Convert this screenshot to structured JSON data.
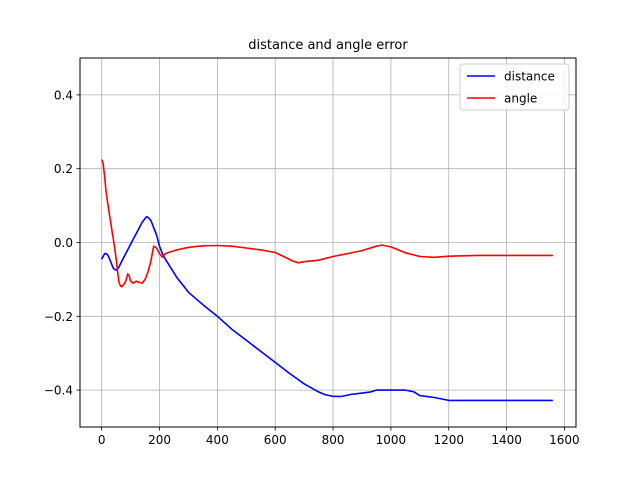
{
  "chart_data": {
    "type": "line",
    "title": "distance and angle error",
    "xlabel": "",
    "ylabel": "",
    "xlim": [
      -75,
      1640
    ],
    "ylim": [
      -0.5,
      0.5
    ],
    "xticks": [
      0,
      200,
      400,
      600,
      800,
      1000,
      1200,
      1400,
      1600
    ],
    "xtick_labels": [
      "0",
      "200",
      "400",
      "600",
      "800",
      "1000",
      "1200",
      "1400",
      "1600"
    ],
    "yticks": [
      -0.4,
      -0.2,
      0.0,
      0.2,
      0.4
    ],
    "ytick_labels": [
      "−0.4",
      "−0.2",
      "0.0",
      "0.2",
      "0.4"
    ],
    "grid": true,
    "legend_position": "upper right",
    "series": [
      {
        "name": "distance",
        "color": "#0000ff",
        "x": [
          0,
          5,
          10,
          15,
          20,
          25,
          30,
          35,
          40,
          45,
          50,
          55,
          60,
          70,
          80,
          90,
          100,
          110,
          120,
          130,
          140,
          150,
          155,
          160,
          170,
          180,
          190,
          200,
          210,
          220,
          240,
          260,
          280,
          300,
          330,
          360,
          400,
          450,
          500,
          550,
          600,
          650,
          700,
          750,
          770,
          800,
          830,
          860,
          900,
          930,
          950,
          1000,
          1050,
          1080,
          1100,
          1150,
          1200,
          1250,
          1300,
          1400,
          1500,
          1560
        ],
        "y": [
          -0.045,
          -0.038,
          -0.03,
          -0.03,
          -0.033,
          -0.04,
          -0.05,
          -0.06,
          -0.07,
          -0.073,
          -0.075,
          -0.072,
          -0.066,
          -0.05,
          -0.035,
          -0.02,
          -0.005,
          0.01,
          0.025,
          0.04,
          0.055,
          0.065,
          0.07,
          0.068,
          0.06,
          0.04,
          0.02,
          -0.01,
          -0.03,
          -0.045,
          -0.07,
          -0.095,
          -0.115,
          -0.135,
          -0.155,
          -0.175,
          -0.2,
          -0.235,
          -0.265,
          -0.295,
          -0.325,
          -0.355,
          -0.383,
          -0.405,
          -0.412,
          -0.417,
          -0.417,
          -0.412,
          -0.408,
          -0.405,
          -0.4,
          -0.4,
          -0.4,
          -0.405,
          -0.415,
          -0.42,
          -0.428,
          -0.428,
          -0.428,
          -0.428,
          -0.428,
          -0.428
        ]
      },
      {
        "name": "angle",
        "color": "#ff0000",
        "x": [
          0,
          5,
          10,
          15,
          20,
          25,
          30,
          35,
          40,
          45,
          50,
          55,
          60,
          65,
          70,
          75,
          80,
          85,
          90,
          95,
          100,
          105,
          110,
          120,
          130,
          140,
          150,
          160,
          170,
          180,
          190,
          200,
          210,
          220,
          240,
          260,
          300,
          350,
          400,
          450,
          500,
          550,
          600,
          640,
          660,
          680,
          700,
          750,
          800,
          850,
          900,
          950,
          970,
          1000,
          1050,
          1100,
          1150,
          1200,
          1300,
          1400,
          1500,
          1560
        ],
        "y": [
          0.225,
          0.215,
          0.18,
          0.14,
          0.11,
          0.085,
          0.06,
          0.035,
          0.01,
          -0.015,
          -0.045,
          -0.08,
          -0.108,
          -0.118,
          -0.12,
          -0.115,
          -0.11,
          -0.1,
          -0.085,
          -0.09,
          -0.105,
          -0.108,
          -0.11,
          -0.105,
          -0.108,
          -0.11,
          -0.1,
          -0.08,
          -0.05,
          -0.01,
          -0.015,
          -0.03,
          -0.04,
          -0.03,
          -0.025,
          -0.02,
          -0.013,
          -0.009,
          -0.008,
          -0.01,
          -0.015,
          -0.02,
          -0.027,
          -0.042,
          -0.05,
          -0.055,
          -0.052,
          -0.048,
          -0.038,
          -0.03,
          -0.022,
          -0.01,
          -0.007,
          -0.012,
          -0.028,
          -0.038,
          -0.04,
          -0.037,
          -0.035,
          -0.035,
          -0.035,
          -0.035
        ]
      }
    ]
  }
}
